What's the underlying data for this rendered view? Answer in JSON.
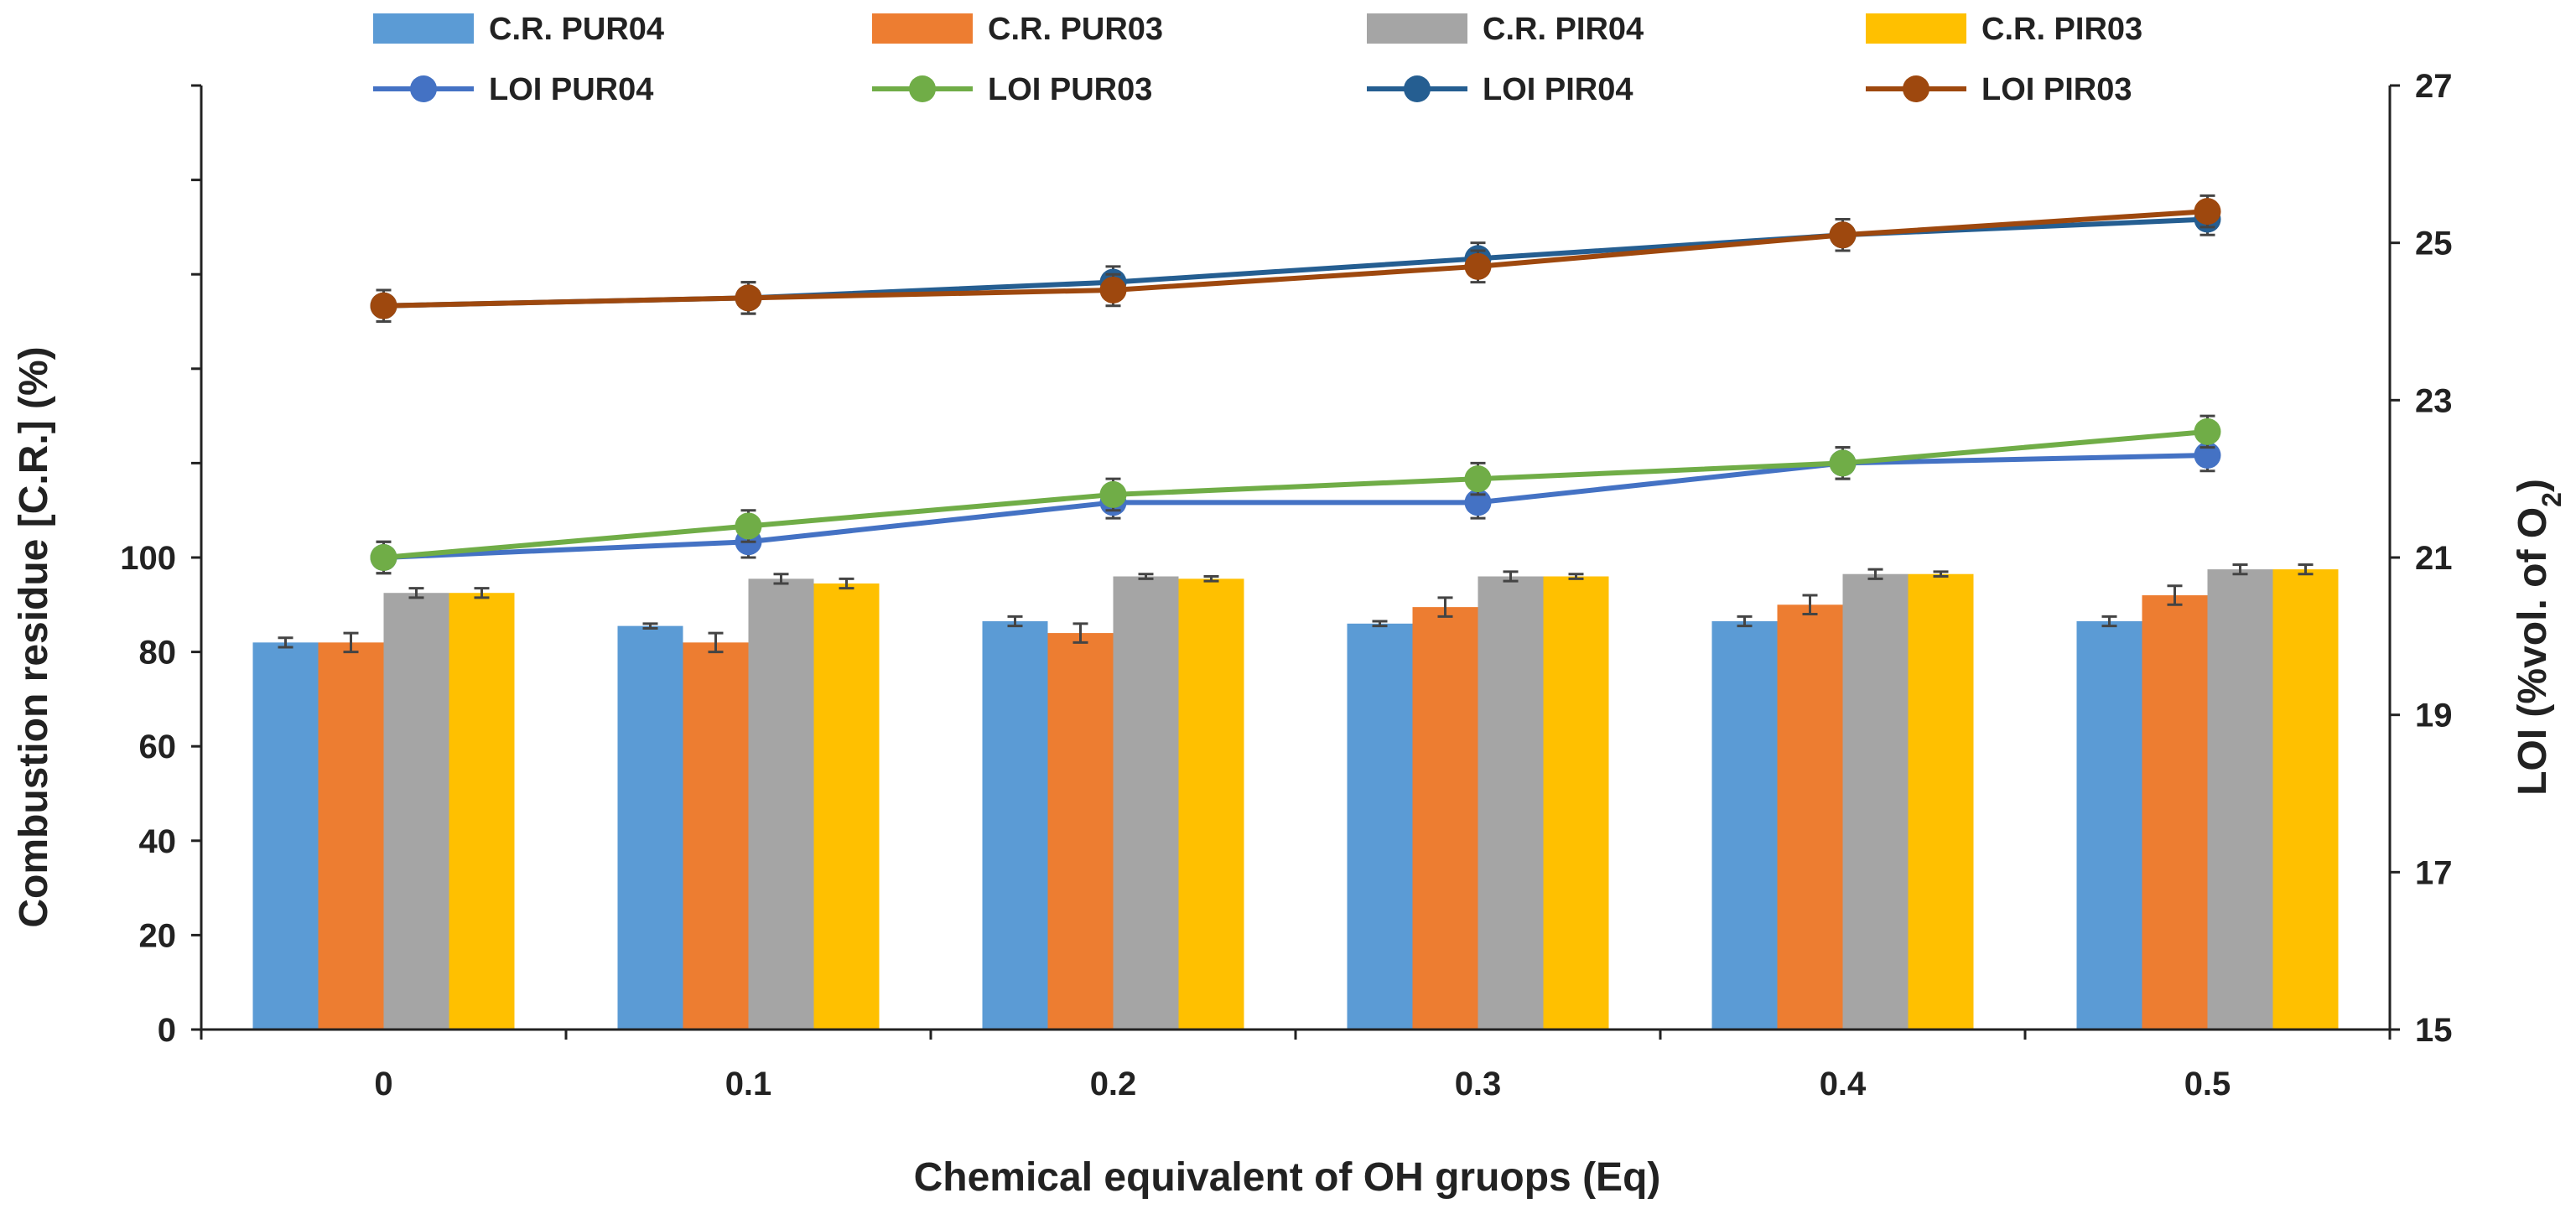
{
  "chart_data": {
    "type": "bar+line",
    "xlabel": "Chemical equivalent of OH gruops (Eq)",
    "ylabel_left": "Combustion residue [C.R.] (%)",
    "ylabel_right_main": "LOI (%vol. of O",
    "ylabel_right_sub": "2",
    "ylabel_right_close": ")",
    "categories": [
      "0",
      "0.1",
      "0.2",
      "0.3",
      "0.4",
      "0.5"
    ],
    "left_axis": {
      "min": 0,
      "max": 200,
      "labeled_ticks": [
        "0",
        "20",
        "40",
        "60",
        "80",
        "100"
      ],
      "labeled_values": [
        0,
        20,
        40,
        60,
        80,
        100
      ],
      "minor_step": 20
    },
    "right_axis": {
      "min": 15,
      "max": 27,
      "ticks": [
        "15",
        "17",
        "19",
        "21",
        "23",
        "25",
        "27"
      ],
      "tick_values": [
        15,
        17,
        19,
        21,
        23,
        25,
        27
      ]
    },
    "bar_series": [
      {
        "name": "C.R. PUR04",
        "color": "#5B9BD5",
        "values": [
          82,
          85.5,
          86.5,
          86,
          86.5,
          86.5
        ],
        "errors": [
          1,
          0.5,
          1,
          0.5,
          1,
          1
        ]
      },
      {
        "name": "C.R. PUR03",
        "color": "#ED7D31",
        "values": [
          82,
          82,
          84,
          89.5,
          90,
          92
        ],
        "errors": [
          2,
          2,
          2,
          2,
          2,
          2
        ]
      },
      {
        "name": "C.R. PIR04",
        "color": "#A5A5A5",
        "values": [
          92.5,
          95.5,
          96,
          96,
          96.5,
          97.5
        ],
        "errors": [
          1,
          1,
          0.5,
          1,
          1,
          1
        ]
      },
      {
        "name": "C.R. PIR03",
        "color": "#FFC000",
        "values": [
          92.5,
          94.5,
          95.5,
          96,
          96.5,
          97.5
        ],
        "errors": [
          1,
          1,
          0.5,
          0.5,
          0.5,
          1
        ]
      }
    ],
    "line_series": [
      {
        "name": "LOI PUR04",
        "color": "#4472C4",
        "values": [
          21.0,
          21.2,
          21.7,
          21.7,
          22.2,
          22.3
        ],
        "errors": [
          0.2,
          0.2,
          0.2,
          0.2,
          0.2,
          0.2
        ]
      },
      {
        "name": "LOI PUR03",
        "color": "#70AD47",
        "values": [
          21.0,
          21.4,
          21.8,
          22.0,
          22.2,
          22.6
        ],
        "errors": [
          0.2,
          0.2,
          0.2,
          0.2,
          0.2,
          0.2
        ]
      },
      {
        "name": "LOI PIR04",
        "color": "#255E91",
        "values": [
          24.2,
          24.3,
          24.5,
          24.8,
          25.1,
          25.3
        ],
        "errors": [
          0.2,
          0.2,
          0.2,
          0.2,
          0.2,
          0.2
        ]
      },
      {
        "name": "LOI PIR03",
        "color": "#9E480E",
        "values": [
          24.2,
          24.3,
          24.4,
          24.7,
          25.1,
          25.4
        ],
        "errors": [
          0.2,
          0.2,
          0.2,
          0.2,
          0.2,
          0.2
        ]
      }
    ],
    "legend": [
      {
        "label": "C.R. PUR04",
        "kind": "bar",
        "color": "#5B9BD5"
      },
      {
        "label": "C.R. PUR03",
        "kind": "bar",
        "color": "#ED7D31"
      },
      {
        "label": "C.R. PIR04",
        "kind": "bar",
        "color": "#A5A5A5"
      },
      {
        "label": "C.R. PIR03",
        "kind": "bar",
        "color": "#FFC000"
      },
      {
        "label": "LOI PUR04",
        "kind": "line",
        "color": "#4472C4"
      },
      {
        "label": "LOI PUR03",
        "kind": "line",
        "color": "#70AD47"
      },
      {
        "label": "LOI PIR04",
        "kind": "line",
        "color": "#255E91"
      },
      {
        "label": "LOI PIR03",
        "kind": "line",
        "color": "#9E480E"
      }
    ],
    "legend_position": "top"
  }
}
